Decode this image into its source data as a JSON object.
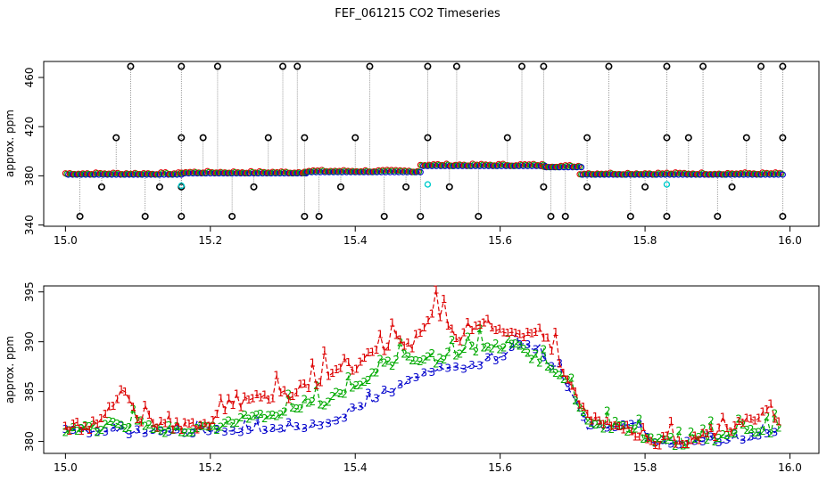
{
  "title": "FEF_061215  CO2 Timeseries",
  "colors": {
    "series1": "#dd0000",
    "series2": "#00aa00",
    "series3": "#0000cc",
    "series4": "#00cccc",
    "outlier": "#000000",
    "vline": "#888888"
  },
  "chart_data": [
    {
      "type": "scatter",
      "ylabel": "approx. ppm",
      "xlabel": "",
      "xlim": [
        14.97,
        16.04
      ],
      "ylim": [
        339,
        473
      ],
      "xticks": [
        15.0,
        15.2,
        15.4,
        15.6,
        15.8,
        16.0
      ],
      "xtick_labels": [
        "15.0",
        "15.2",
        "15.4",
        "15.6",
        "15.8",
        "16.0"
      ],
      "yticks": [
        340,
        380,
        420,
        460
      ],
      "ytick_labels": [
        "340",
        "380",
        "420",
        "460"
      ],
      "baseline_segments": [
        {
          "x0": 15.0,
          "x1": 15.16,
          "y": 381
        },
        {
          "x0": 15.16,
          "x1": 15.33,
          "y": 382
        },
        {
          "x0": 15.33,
          "x1": 15.49,
          "y": 383
        },
        {
          "x0": 15.49,
          "x1": 15.66,
          "y": 388
        },
        {
          "x0": 15.66,
          "x1": 15.71,
          "y": 387
        },
        {
          "x0": 15.71,
          "x1": 15.83,
          "y": 381
        },
        {
          "x0": 15.83,
          "x1": 15.99,
          "y": 381
        }
      ],
      "outliers_high": [
        15.09,
        15.16,
        15.21,
        15.3,
        15.32,
        15.42,
        15.5,
        15.54,
        15.63,
        15.66,
        15.75,
        15.83,
        15.88,
        15.96,
        15.99
      ],
      "outliers_mid": [
        15.07,
        15.16,
        15.19,
        15.28,
        15.33,
        15.4,
        15.5,
        15.61,
        15.72,
        15.83,
        15.86,
        15.94,
        15.99
      ],
      "outliers_low": [
        15.02,
        15.11,
        15.16,
        15.23,
        15.33,
        15.35,
        15.44,
        15.49,
        15.57,
        15.67,
        15.69,
        15.78,
        15.83,
        15.9,
        15.99
      ],
      "outliers_small": [
        15.05,
        15.13,
        15.16,
        15.26,
        15.38,
        15.47,
        15.53,
        15.66,
        15.72,
        15.8,
        15.92
      ],
      "cyan_points": [
        [
          15.16,
          372
        ],
        [
          15.5,
          373
        ],
        [
          15.83,
          373
        ]
      ],
      "outlier_levels": {
        "high": 469,
        "mid": 411,
        "low": 347,
        "small": 371
      }
    },
    {
      "type": "line",
      "ylabel": "approx. ppm",
      "xlabel": "",
      "xlim": [
        14.97,
        16.04
      ],
      "ylim": [
        378.8,
        395.6
      ],
      "xticks": [
        15.0,
        15.2,
        15.4,
        15.6,
        15.8,
        16.0
      ],
      "xtick_labels": [
        "15.0",
        "15.2",
        "15.4",
        "15.6",
        "15.8",
        "16.0"
      ],
      "yticks": [
        380,
        385,
        390,
        395
      ],
      "ytick_labels": [
        "380",
        "385",
        "390",
        "395"
      ],
      "series": [
        {
          "name": "1",
          "marker": "1",
          "x": [
            15.0,
            15.05,
            15.08,
            15.1,
            15.15,
            15.2,
            15.24,
            15.28,
            15.32,
            15.36,
            15.4,
            15.44,
            15.47,
            15.51,
            15.54,
            15.58,
            15.62,
            15.66,
            15.69,
            15.72,
            15.76,
            15.79,
            15.81,
            15.85,
            15.89,
            15.93,
            15.96,
            15.985
          ],
          "y": [
            381.2,
            381.8,
            385.6,
            382.0,
            381.5,
            381.8,
            383.8,
            384.5,
            384.8,
            386.8,
            387.5,
            389.5,
            388.5,
            393.5,
            390.0,
            391.5,
            391.0,
            390.5,
            387.0,
            382.5,
            381.8,
            380.5,
            380.0,
            380.0,
            380.8,
            381.5,
            383.0,
            382.0
          ]
        },
        {
          "name": "2",
          "marker": "2",
          "x": [
            15.0,
            15.05,
            15.09,
            15.14,
            15.2,
            15.24,
            15.28,
            15.32,
            15.36,
            15.4,
            15.44,
            15.47,
            15.51,
            15.54,
            15.58,
            15.62,
            15.66,
            15.69,
            15.72,
            15.76,
            15.79,
            15.81,
            15.85,
            15.9,
            15.94,
            15.985
          ],
          "y": [
            381.0,
            381.3,
            381.7,
            381.2,
            381.2,
            382.3,
            382.6,
            383.2,
            384.0,
            385.5,
            387.5,
            388.5,
            388.0,
            389.0,
            389.5,
            389.5,
            388.0,
            386.5,
            381.8,
            381.5,
            380.8,
            380.0,
            379.8,
            380.3,
            380.8,
            381.3
          ]
        },
        {
          "name": "3",
          "marker": "3",
          "x": [
            15.0,
            15.05,
            15.1,
            15.15,
            15.2,
            15.25,
            15.3,
            15.35,
            15.4,
            15.44,
            15.48,
            15.52,
            15.56,
            15.6,
            15.63,
            15.66,
            15.69,
            15.72,
            15.76,
            15.79,
            15.81,
            15.85,
            15.9,
            15.95,
            15.985
          ],
          "y": [
            381.0,
            381.0,
            380.9,
            381.0,
            381.0,
            381.0,
            381.2,
            381.5,
            383.0,
            384.5,
            386.5,
            387.3,
            387.5,
            388.5,
            390.0,
            388.5,
            386.0,
            381.5,
            381.3,
            381.8,
            379.9,
            379.8,
            380.0,
            380.3,
            381.2
          ]
        }
      ]
    }
  ]
}
